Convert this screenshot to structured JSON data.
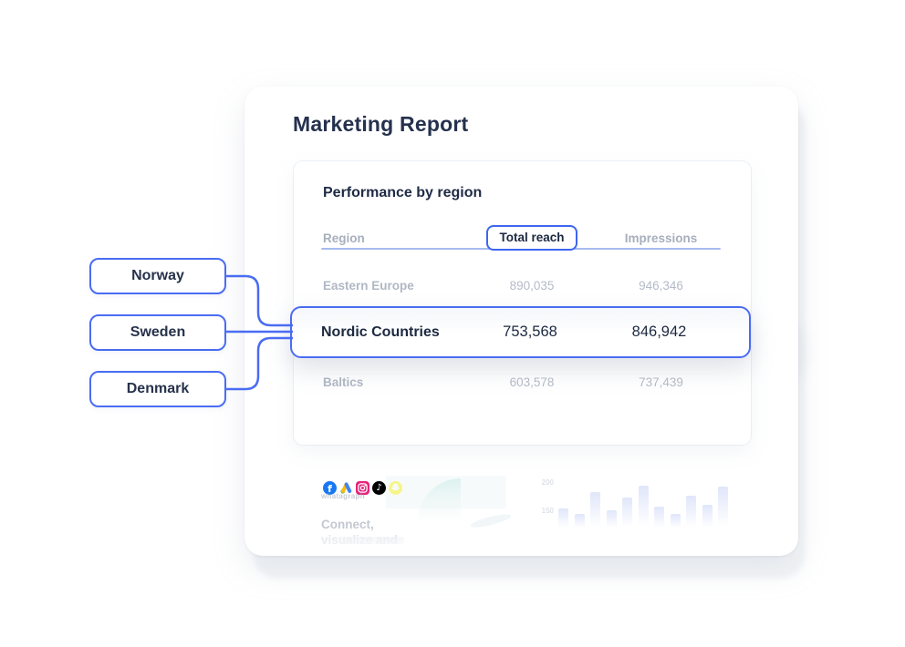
{
  "page": {
    "title": "Marketing Report"
  },
  "panel": {
    "title": "Performance by region"
  },
  "table": {
    "columns": {
      "region": "Region",
      "total_reach": "Total reach",
      "impressions": "Impressions"
    },
    "rows": [
      {
        "region": "Eastern Europe",
        "total_reach": "890,035",
        "impressions": "946,346",
        "highlighted": false
      },
      {
        "region": "Nordic Countries",
        "total_reach": "753,568",
        "impressions": "846,942",
        "highlighted": true
      },
      {
        "region": "Baltics",
        "total_reach": "603,578",
        "impressions": "737,439",
        "highlighted": false
      }
    ]
  },
  "callouts": [
    {
      "label": "Norway"
    },
    {
      "label": "Sweden"
    },
    {
      "label": "Denmark"
    }
  ],
  "social_icons": [
    "facebook",
    "google-ads",
    "instagram",
    "tiktok",
    "snapchat"
  ],
  "facebook_glyph": "f",
  "tiktok_glyph": "♪",
  "footer": {
    "brand": "whatagraph",
    "headline_line1": "Connect,",
    "headline_line2": "visualize and"
  },
  "chart_data": {
    "type": "bar",
    "title": "",
    "yticks": [
      "200",
      "150"
    ],
    "ylim": [
      110,
      210
    ],
    "values": [
      157,
      147,
      187,
      155,
      177,
      199,
      161,
      148,
      181,
      164,
      198
    ],
    "grid": false,
    "legend": "none"
  },
  "colors": {
    "accent_blue": "#4a6cf3",
    "underline_blue": "#a6bbf0",
    "dark_text": "#1f2b45",
    "muted_text": "#b0b8c4",
    "facebook": "#1877f2",
    "instagram": "#e6247b",
    "tiktok": "#000000",
    "snapchat": "#fdf400",
    "gauge_teal": "#bfe7e3"
  }
}
